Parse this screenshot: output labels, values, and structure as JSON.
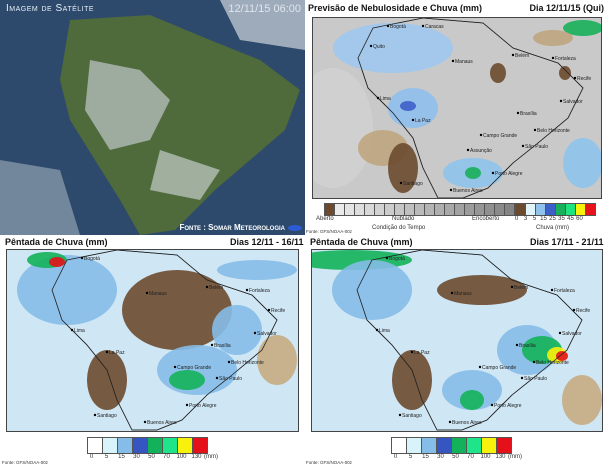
{
  "satellite": {
    "title": "Imagem de Satélite",
    "timestamp": "12/11/15 06:00",
    "source": "Fonte : Somar Meteorologia"
  },
  "forecast": {
    "title": "Previsão de Nebulosidade e Chuva (mm)",
    "date": "Dia 12/11/15 (Qui)",
    "source": "Fonte: GFS/NOAA-00z",
    "condition_legend": {
      "left": "Aberto",
      "middle": "Nublado",
      "right": "Encoberto",
      "caption": "Condição do Tempo"
    },
    "rain_legend": {
      "ticks": [
        "0",
        "3",
        "5",
        "15",
        "25",
        "35",
        "45",
        "60"
      ],
      "caption": "Chuva (mm)",
      "colors": [
        "#6b4a2f",
        "#dff5fb",
        "#8fc3ec",
        "#3d5fc9",
        "#18b05a",
        "#1fe37e",
        "#f6f20c",
        "#e8141b"
      ]
    },
    "cities": [
      "Bogotá",
      "Caracas",
      "Quito",
      "Lima",
      "La Paz",
      "Manaus",
      "Belém",
      "Fortaleza",
      "Recife",
      "Salvador",
      "Brasília",
      "Belo Horizonte",
      "Campo Grande",
      "Assunção",
      "São Paulo",
      "Porto Alegre",
      "Santiago",
      "Buenos Aires"
    ]
  },
  "pentad1": {
    "title": "Pêntada de Chuva (mm)",
    "dates": "Dias 12/11 - 16/11",
    "source": "Fonte: GFS/NOAA-00z",
    "cities": [
      "Bogotá",
      "Manaus",
      "Belém",
      "Fortaleza",
      "Recife",
      "Salvador",
      "Brasília",
      "Belo Horizonte",
      "Campo Grande",
      "São Paulo",
      "Porto Alegre",
      "Santiago",
      "Buenos Aires",
      "Lima",
      "La Paz"
    ]
  },
  "pentad2": {
    "title": "Pêntada de Chuva (mm)",
    "dates": "Dias 17/11 - 21/11",
    "source": "Fonte: GFS/NOAA-00z",
    "cities": [
      "Bogotá",
      "Manaus",
      "Belém",
      "Fortaleza",
      "Recife",
      "Salvador",
      "Brasília",
      "Belo Horizonte",
      "Campo Grande",
      "São Paulo",
      "Porto Alegre",
      "Santiago",
      "Buenos Aires",
      "Lima",
      "La Paz"
    ]
  },
  "pentad_legend": {
    "ticks": [
      "0",
      "5",
      "15",
      "30",
      "50",
      "70",
      "100",
      "130"
    ],
    "unit": "(mm)",
    "colors": [
      "#ffffff",
      "#d9f3fb",
      "#86bde8",
      "#3556c0",
      "#13b25a",
      "#1fe58a",
      "#f7f10b",
      "#e5111a"
    ]
  }
}
